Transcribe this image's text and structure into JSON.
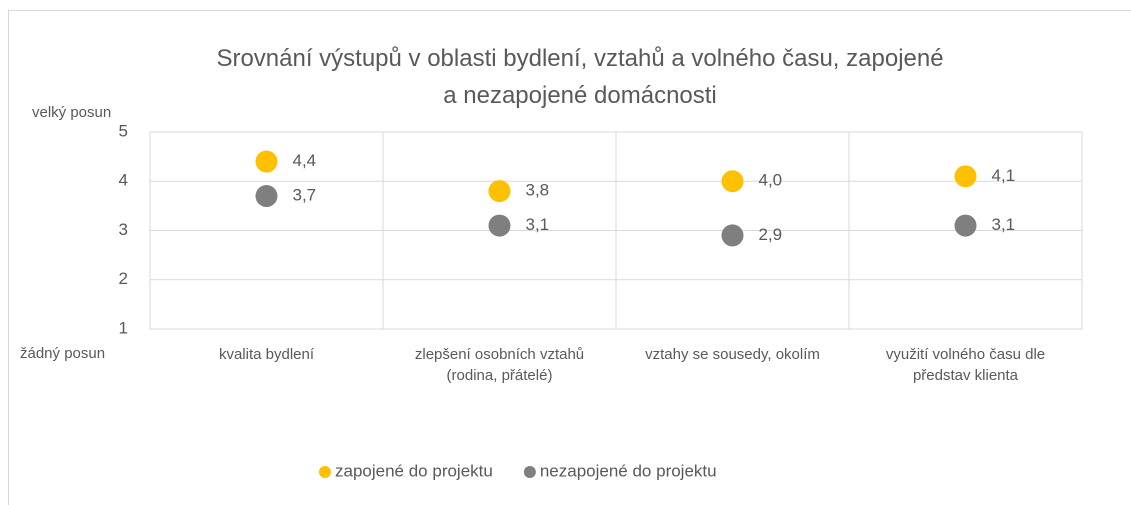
{
  "chart_data": {
    "type": "dot",
    "title": "Srovnání výstupů v oblasti bydlení, vztahů a volného času, zapojené\na nezapojené domácnosti",
    "annotations": [
      "velký posun",
      "žádný posun"
    ],
    "categories": [
      "kvalita bydlení",
      "zlepšení osobních vztahů\n(rodina, přátelé)",
      "vztahy se sousedy, okolím",
      "využití volného času dle\npředstav klienta"
    ],
    "series": [
      {
        "name": "zapojené do projektu",
        "color": "#ffc000",
        "values": [
          4.4,
          3.8,
          4.0,
          4.1
        ],
        "value_labels": [
          "4,4",
          "3,8",
          "4,0",
          "4,1"
        ]
      },
      {
        "name": "nezapojené do projektu",
        "color": "#7f7f7f",
        "values": [
          3.7,
          3.1,
          2.9,
          3.1
        ],
        "value_labels": [
          "3,7",
          "3,1",
          "2,9",
          "3,1"
        ]
      }
    ],
    "ylim": [
      1,
      5
    ],
    "yticks": [
      1,
      2,
      3,
      4,
      5
    ],
    "grid": true,
    "legend": "bottom"
  }
}
